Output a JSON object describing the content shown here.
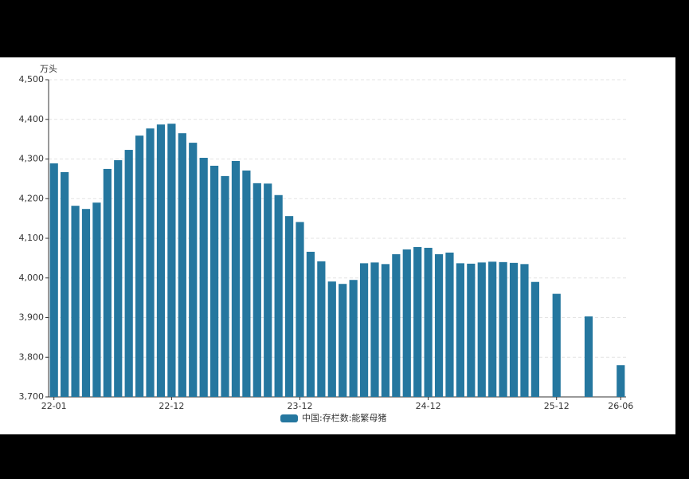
{
  "chart_data": {
    "type": "bar",
    "unit": "万头",
    "categories": [
      "22-01",
      null,
      null,
      null,
      null,
      null,
      null,
      null,
      null,
      null,
      null,
      "22-12",
      null,
      null,
      null,
      null,
      null,
      null,
      null,
      null,
      null,
      null,
      null,
      "23-12",
      null,
      null,
      null,
      null,
      null,
      null,
      null,
      null,
      null,
      null,
      null,
      "24-12",
      null,
      null,
      null,
      null,
      null,
      null,
      null,
      null,
      null,
      null,
      null,
      "25-12",
      null,
      null,
      null,
      null,
      null,
      "26-06"
    ],
    "series": [
      {
        "name": "中国:存栏数:能繁母猪",
        "color": "#25779f",
        "values": [
          4289,
          4267,
          4182,
          4174,
          4190,
          4275,
          4297,
          4323,
          4359,
          4377,
          4387,
          4389,
          4365,
          4341,
          4303,
          4283,
          4257,
          4295,
          4271,
          4239,
          4238,
          4209,
          4156,
          4141,
          4066,
          4042,
          3991,
          3985,
          3995,
          4037,
          4039,
          4035,
          4060,
          4072,
          4078,
          4076,
          4060,
          4064,
          4037,
          4036,
          4039,
          4041,
          4040,
          4038,
          4035,
          3990,
          null,
          3960,
          null,
          null,
          3903,
          null,
          null,
          3780
        ]
      }
    ],
    "ylim": [
      3700,
      4500
    ],
    "yticks": [
      {
        "value": 3700,
        "label": "3,700"
      },
      {
        "value": 3800,
        "label": "3,800"
      },
      {
        "value": 3900,
        "label": "3,900"
      },
      {
        "value": 4000,
        "label": "4,000"
      },
      {
        "value": 4100,
        "label": "4,100"
      },
      {
        "value": 4200,
        "label": "4,200"
      },
      {
        "value": 4300,
        "label": "4,300"
      },
      {
        "value": 4400,
        "label": "4,400"
      },
      {
        "value": 4500,
        "label": "4,500"
      }
    ],
    "grid": true
  }
}
